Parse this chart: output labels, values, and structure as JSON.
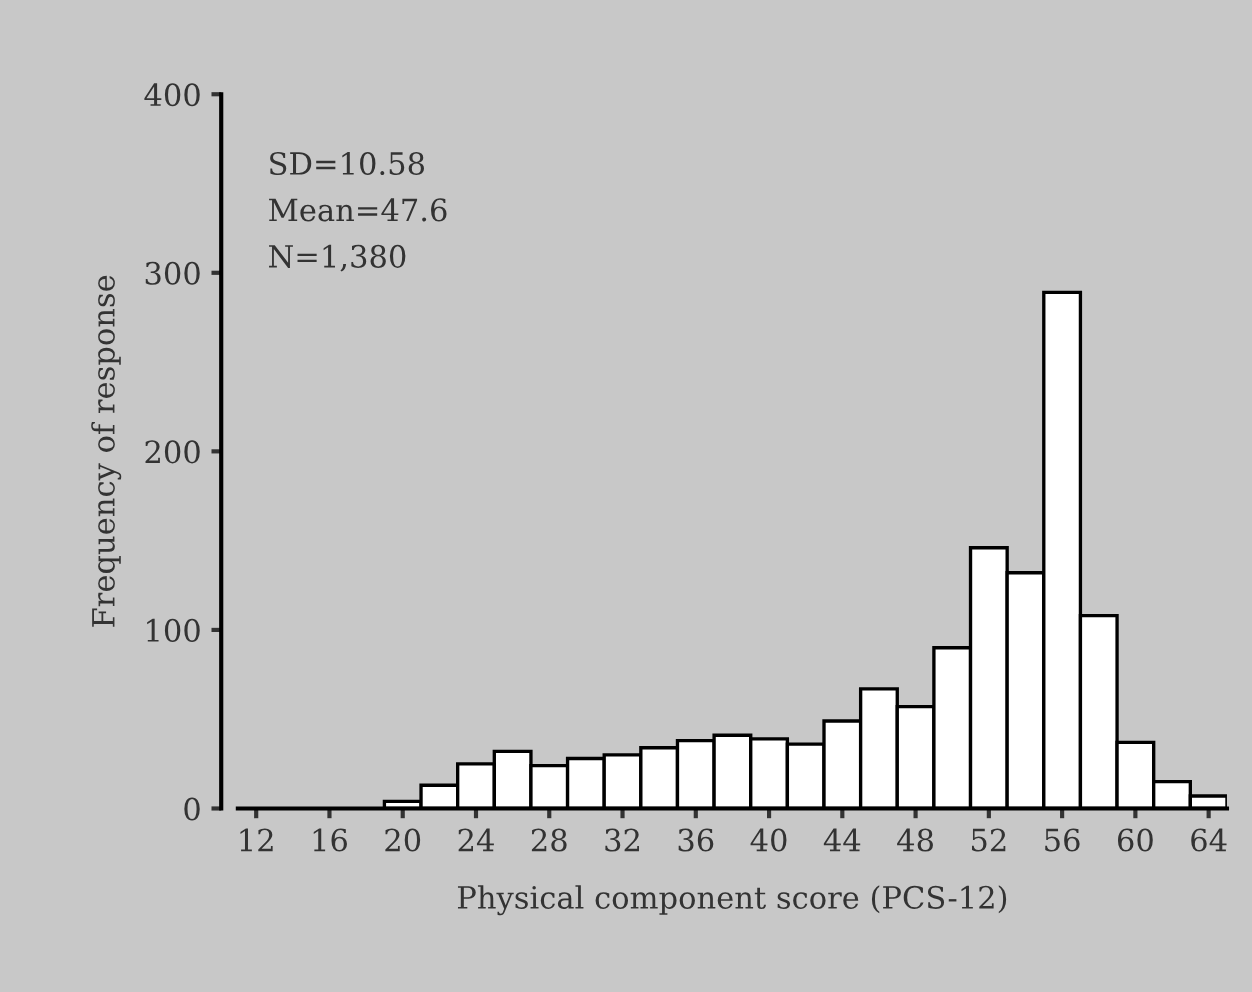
{
  "chart_data": {
    "type": "histogram",
    "bins": [
      11,
      13,
      15,
      17,
      19,
      21,
      23,
      25,
      27,
      29,
      31,
      33,
      35,
      37,
      39,
      41,
      43,
      45,
      47,
      49,
      51,
      53,
      55,
      57,
      59,
      61,
      63,
      65
    ],
    "values": [
      null,
      null,
      null,
      null,
      4,
      13,
      25,
      32,
      24,
      28,
      30,
      34,
      38,
      41,
      39,
      36,
      49,
      67,
      57,
      90,
      146,
      132,
      289,
      108,
      37,
      15,
      7
    ],
    "color": "#ffffff",
    "xlabel": "Physical component score (PCS-12)",
    "ylabel": "Frequency of response",
    "xlim": [
      11,
      65
    ],
    "xticks": [
      12,
      16,
      20,
      24,
      28,
      32,
      36,
      40,
      44,
      48,
      52,
      56,
      60,
      64
    ],
    "ylim": [
      0,
      400
    ],
    "yticks": [
      0,
      100,
      200,
      300,
      400
    ],
    "annotations": [
      "SD=10.58",
      "Mean=47.6",
      "N=1,380"
    ],
    "grid": false,
    "legend": false
  }
}
